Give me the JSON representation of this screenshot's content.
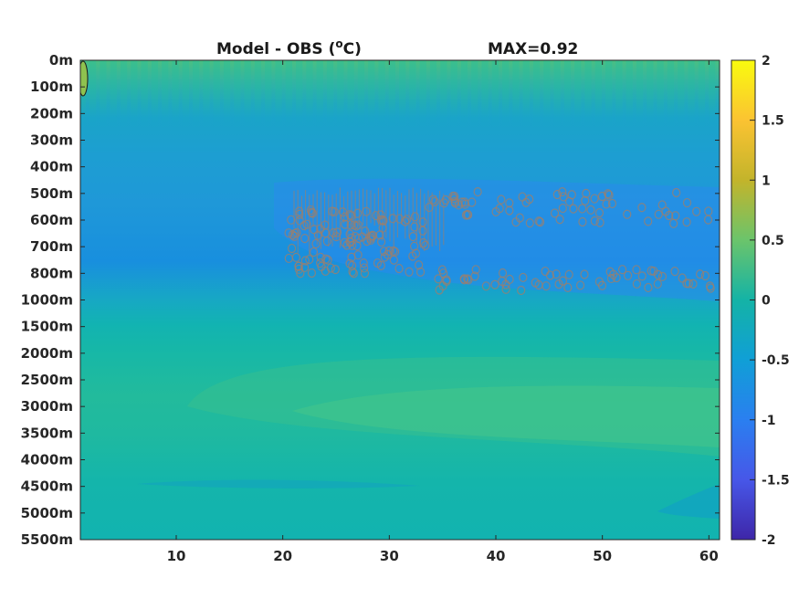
{
  "chart_data": {
    "type": "heatmap",
    "title": "Model - OBS (",
    "title_unit_sup": "o",
    "title_unit_tail": "C)",
    "max_label": "MAX=0.92",
    "xlabel": "",
    "ylabel": "",
    "x_ticks": [
      "10",
      "20",
      "30",
      "40",
      "50",
      "60"
    ],
    "x_tick_values": [
      10,
      20,
      30,
      40,
      50,
      60
    ],
    "xlim": [
      1,
      61
    ],
    "y_tick_labels": [
      "0m",
      "100m",
      "200m",
      "300m",
      "400m",
      "500m",
      "600m",
      "700m",
      "800m",
      "1000m",
      "1500m",
      "2000m",
      "2500m",
      "3000m",
      "3500m",
      "4000m",
      "4500m",
      "5000m",
      "5500m"
    ],
    "colorbar": {
      "ticks": [
        "2",
        "1.5",
        "1",
        "0.5",
        "0",
        "-0.5",
        "-1",
        "-1.5",
        "-2"
      ],
      "tick_values": [
        2,
        1.5,
        1,
        0.5,
        0,
        -0.5,
        -1,
        -1.5,
        -2
      ],
      "range": [
        -2,
        2
      ],
      "colormap": "parula"
    },
    "field_description_by_depth_level": [
      {
        "depth": "0m",
        "value": 0.25
      },
      {
        "depth": "100m",
        "value": 0.1
      },
      {
        "depth": "200m",
        "value": -0.45
      },
      {
        "depth": "300m",
        "value": -0.4
      },
      {
        "depth": "400m",
        "value": -0.45
      },
      {
        "depth": "500m",
        "value": -0.6
      },
      {
        "depth": "600m",
        "value": -0.75
      },
      {
        "depth": "700m",
        "value": -0.75
      },
      {
        "depth": "800m",
        "value": -0.55
      },
      {
        "depth": "1000m",
        "value": -0.3
      },
      {
        "depth": "1500m",
        "value": 0.05
      },
      {
        "depth": "2000m",
        "value": 0.15
      },
      {
        "depth": "2500m",
        "value": 0.2
      },
      {
        "depth": "3000m",
        "value": 0.25
      },
      {
        "depth": "3500m",
        "value": 0.2
      },
      {
        "depth": "4000m",
        "value": 0.1
      },
      {
        "depth": "4500m",
        "value": 0.0
      },
      {
        "depth": "5000m",
        "value": -0.05
      },
      {
        "depth": "5500m",
        "value": -0.05
      }
    ],
    "max_value": 0.92
  }
}
